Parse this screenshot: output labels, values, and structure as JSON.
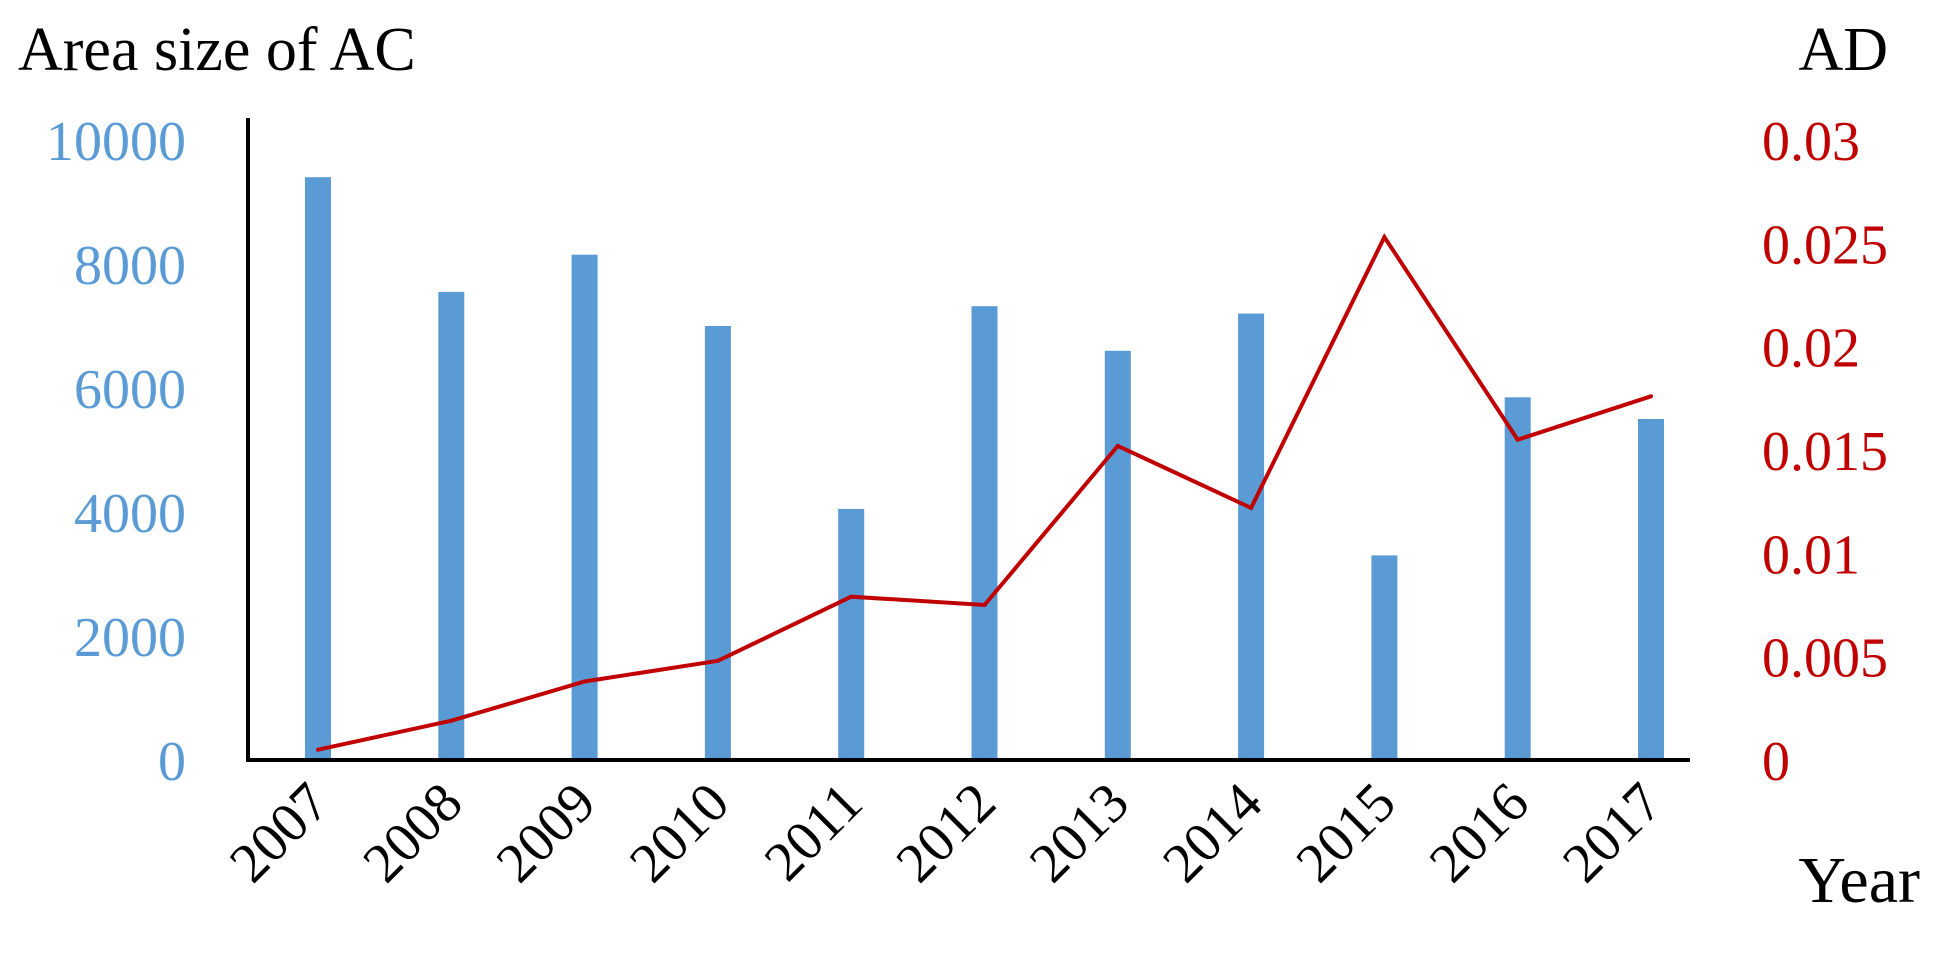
{
  "chart_data": {
    "type": "bar+line",
    "x_axis": {
      "label": "Year",
      "categories": [
        "2007",
        "2008",
        "2009",
        "2010",
        "2011",
        "2012",
        "2013",
        "2014",
        "2015",
        "2016",
        "2017"
      ]
    },
    "y_left": {
      "label": "Area size of AC",
      "ticks": [
        "0",
        "2000",
        "4000",
        "6000",
        "8000",
        "10000"
      ],
      "range": [
        0,
        10000
      ],
      "color": "#5b9bd5"
    },
    "y_right": {
      "label": "AD",
      "ticks": [
        "0",
        "0.005",
        "0.01",
        "0.015",
        "0.02",
        "0.025",
        "0.03"
      ],
      "range": [
        0,
        0.03
      ],
      "color": "#c00000"
    },
    "series": [
      {
        "type": "bar",
        "axis": "left",
        "color": "#5b9bd5",
        "values": [
          9400,
          7550,
          8150,
          7000,
          4050,
          7320,
          6600,
          7200,
          3300,
          5850,
          5500
        ]
      },
      {
        "type": "line",
        "axis": "right",
        "color": "#c00000",
        "values": [
          0.0005,
          0.0019,
          0.0038,
          0.0048,
          0.0079,
          0.0075,
          0.0152,
          0.0122,
          0.0253,
          0.0155,
          0.0176
        ]
      }
    ],
    "grid": false,
    "legend": "none"
  }
}
